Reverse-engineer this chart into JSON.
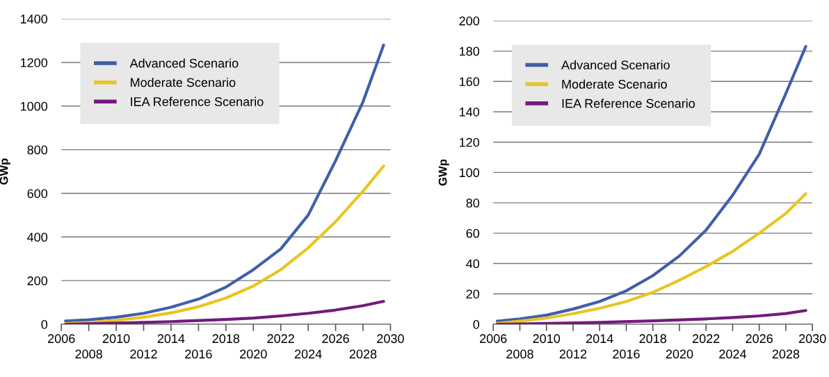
{
  "chart_data": [
    {
      "type": "line",
      "ylabel": "GWp",
      "xlim": [
        2006,
        2030
      ],
      "ylim": [
        0,
        1400
      ],
      "yticks": [
        0,
        200,
        400,
        600,
        800,
        1000,
        1200,
        1400
      ],
      "xticks": [
        2006,
        {
          "value": 2008,
          "label": null
        },
        2010,
        {
          "value": 2012,
          "label": null
        },
        2014,
        {
          "value": 2016,
          "label": null
        },
        2018,
        {
          "value": 2020,
          "label": null
        },
        2022,
        {
          "value": 2024,
          "label": null
        },
        2026,
        {
          "value": 2028,
          "label": null
        },
        2030
      ],
      "annotations": [
        "2008",
        "2012",
        "2016",
        "2020",
        "2024",
        "2028"
      ],
      "grid": "y",
      "legend": "top left",
      "series": [
        {
          "name": "Advanced Scenario",
          "color": "#3f5faa",
          "x": [
            2006.3,
            2008,
            2010,
            2012,
            2014,
            2016,
            2018,
            2020,
            2022,
            2024,
            2026,
            2028,
            2029.5
          ],
          "values": [
            15,
            20,
            32,
            50,
            78,
            115,
            170,
            250,
            345,
            500,
            750,
            1020,
            1280
          ]
        },
        {
          "name": "Moderate Scenario",
          "color": "#e8c520",
          "x": [
            2006.3,
            2008,
            2010,
            2012,
            2014,
            2016,
            2018,
            2020,
            2022,
            2024,
            2026,
            2028,
            2029.5
          ],
          "values": [
            3,
            8,
            18,
            32,
            52,
            80,
            120,
            175,
            250,
            350,
            470,
            610,
            725
          ]
        },
        {
          "name": "IEA Reference Scenario",
          "color": "#741a7c",
          "x": [
            2006.3,
            2010,
            2014,
            2018,
            2020,
            2022,
            2024,
            2026,
            2028,
            2029.5
          ],
          "values": [
            0,
            5,
            12,
            22,
            28,
            38,
            50,
            65,
            85,
            105
          ]
        }
      ]
    },
    {
      "type": "line",
      "ylabel": "GWp",
      "xlim": [
        2006,
        2030
      ],
      "ylim": [
        0,
        200
      ],
      "yticks": [
        0,
        20,
        40,
        60,
        80,
        100,
        120,
        140,
        160,
        180,
        200
      ],
      "xticks": [
        2006,
        {
          "value": 2008,
          "label": null
        },
        2010,
        {
          "value": 2012,
          "label": null
        },
        2014,
        {
          "value": 2016,
          "label": null
        },
        2018,
        {
          "value": 2020,
          "label": null
        },
        2022,
        {
          "value": 2024,
          "label": null
        },
        2026,
        {
          "value": 2028,
          "label": null
        },
        2030
      ],
      "annotations": [
        "2008",
        "2012",
        "2016",
        "2020",
        "2024",
        "2028"
      ],
      "grid": "y",
      "legend": "top left",
      "series": [
        {
          "name": "Advanced Scenario",
          "color": "#3f5faa",
          "x": [
            2006.3,
            2008,
            2010,
            2012,
            2014,
            2016,
            2018,
            2020,
            2022,
            2024,
            2026,
            2028,
            2029.5
          ],
          "values": [
            2,
            3.5,
            6,
            10,
            15,
            22,
            32,
            45,
            62,
            85,
            112,
            152,
            183
          ]
        },
        {
          "name": "Moderate Scenario",
          "color": "#e8c520",
          "x": [
            2006.3,
            2008,
            2010,
            2012,
            2014,
            2016,
            2018,
            2020,
            2022,
            2024,
            2026,
            2028,
            2029.5
          ],
          "values": [
            0.5,
            2,
            4,
            7,
            10.5,
            15,
            21,
            29,
            38,
            48,
            60,
            73,
            86
          ]
        },
        {
          "name": "IEA Reference Scenario",
          "color": "#741a7c",
          "x": [
            2006.3,
            2010,
            2014,
            2018,
            2022,
            2024,
            2026,
            2028,
            2029.5
          ],
          "values": [
            0,
            0.5,
            1.2,
            2.2,
            3.5,
            4.4,
            5.5,
            7,
            9
          ]
        }
      ]
    }
  ]
}
